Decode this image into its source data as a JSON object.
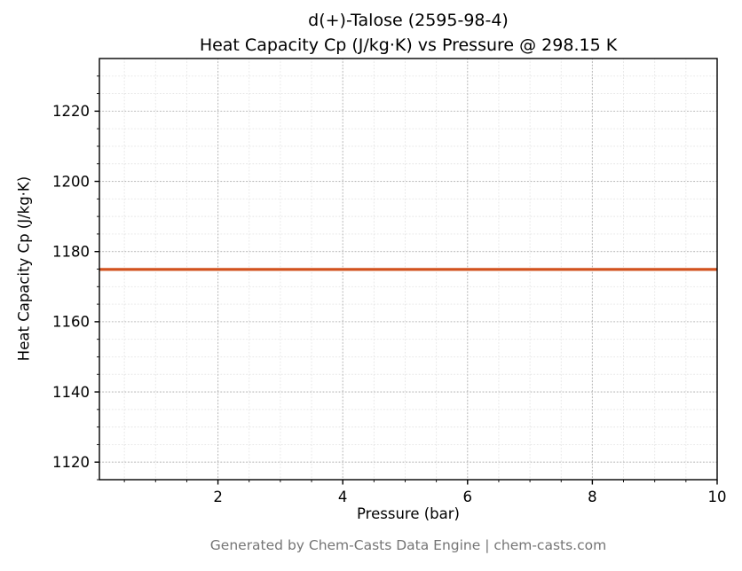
{
  "footer": "Generated by Chem-Casts Data Engine | chem-casts.com",
  "chart_data": {
    "type": "line",
    "title_lines": [
      "d(+)-Talose (2595-98-4)",
      "Heat Capacity Cp (J/kg·K) vs Pressure @ 298.15 K"
    ],
    "xlabel": "Pressure (bar)",
    "ylabel": "Heat Capacity Cp (J/kg·K)",
    "x": [
      0.1,
      1.2,
      2.3,
      3.4,
      4.5,
      5.6,
      6.7,
      7.8,
      8.9,
      10.0
    ],
    "series": [
      {
        "name": "Heat Capacity Cp",
        "values": [
          1174.9,
          1174.9,
          1174.9,
          1174.9,
          1174.9,
          1174.9,
          1174.9,
          1174.9,
          1174.9,
          1174.9
        ]
      }
    ],
    "xlim": [
      0.1,
      10
    ],
    "ylim": [
      1115,
      1235
    ],
    "xticks": [
      2,
      4,
      6,
      8,
      10
    ],
    "yticks": [
      1120,
      1140,
      1160,
      1180,
      1200,
      1220
    ],
    "x_minor_step": 0.5,
    "y_minor_step": 5,
    "grid": true,
    "grid_style": "dotted",
    "legend_position": "none",
    "line_color": "#d2521e",
    "line_width": 3.2,
    "major_grid_color": "#b9b9b9",
    "minor_grid_color": "#e4e4e4",
    "spine_color": "#000000"
  }
}
